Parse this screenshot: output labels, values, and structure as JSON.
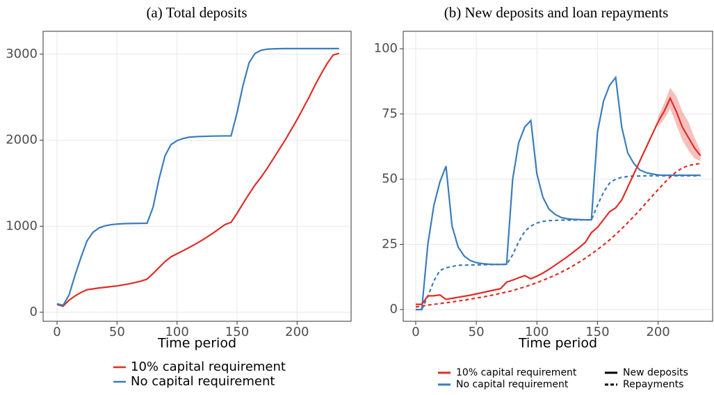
{
  "chart_data": [
    {
      "type": "line",
      "title": "(a) Total deposits",
      "x_label": "Time period",
      "x": [
        0,
        5,
        10,
        15,
        20,
        25,
        30,
        35,
        40,
        45,
        50,
        55,
        60,
        65,
        70,
        75,
        80,
        85,
        90,
        95,
        100,
        105,
        110,
        115,
        120,
        125,
        130,
        135,
        140,
        145,
        150,
        155,
        160,
        165,
        170,
        175,
        180,
        185,
        190,
        195,
        200,
        205,
        210,
        215,
        220,
        225,
        230,
        235
      ],
      "series": [
        {
          "name": "10% capital requirement",
          "color": "#de2d26",
          "dash": false,
          "values": [
            90,
            70,
            140,
            190,
            230,
            262,
            272,
            282,
            290,
            298,
            306,
            318,
            330,
            345,
            362,
            385,
            450,
            520,
            590,
            645,
            680,
            715,
            752,
            790,
            830,
            875,
            920,
            970,
            1020,
            1045,
            1150,
            1265,
            1375,
            1480,
            1570,
            1670,
            1780,
            1890,
            2000,
            2120,
            2240,
            2370,
            2500,
            2640,
            2770,
            2890,
            2990,
            3010
          ]
        },
        {
          "name": "No capital requirement",
          "color": "#3a7dba",
          "dash": false,
          "values": [
            100,
            80,
            200,
            430,
            640,
            830,
            930,
            980,
            1005,
            1018,
            1025,
            1030,
            1032,
            1033,
            1034,
            1035,
            1220,
            1550,
            1820,
            1950,
            1995,
            2020,
            2035,
            2040,
            2044,
            2046,
            2048,
            2049,
            2050,
            2050,
            2320,
            2640,
            2900,
            3010,
            3045,
            3058,
            3062,
            3064,
            3065,
            3065,
            3065,
            3065,
            3065,
            3065,
            3065,
            3065,
            3065,
            3065
          ]
        }
      ],
      "xlim": [
        -11.6,
        245
      ],
      "xticks": [
        0,
        50,
        100,
        150,
        200
      ],
      "ylim": [
        -105,
        3266
      ],
      "yticks": [
        0,
        1000,
        2000,
        3000
      ],
      "grid": true
    },
    {
      "type": "line",
      "title": "(b) New deposits and loan repayments",
      "x_label": "Time period",
      "x": [
        0,
        5,
        10,
        15,
        20,
        25,
        30,
        35,
        40,
        45,
        50,
        55,
        60,
        65,
        70,
        75,
        80,
        85,
        90,
        95,
        100,
        105,
        110,
        115,
        120,
        125,
        130,
        135,
        140,
        145,
        150,
        155,
        160,
        165,
        170,
        175,
        180,
        185,
        190,
        195,
        200,
        205,
        210,
        215,
        220,
        225,
        230,
        235
      ],
      "legend_colors": [
        {
          "name": "10% capital requirement",
          "color": "#de2d26"
        },
        {
          "name": "No capital requirement",
          "color": "#3a7dba"
        }
      ],
      "legend_linetypes": [
        {
          "name": "New deposits",
          "dash": false
        },
        {
          "name": "Repayments",
          "dash": true
        }
      ],
      "series": [
        {
          "color": "#3a7dba",
          "dash": true,
          "values": [
            0,
            0,
            5,
            11,
            15,
            16,
            16.5,
            17,
            17,
            17.1,
            17.1,
            17.2,
            17.2,
            17.3,
            17.3,
            17.3,
            21,
            26,
            30,
            32,
            33.2,
            33.8,
            34.1,
            34.2,
            34.3,
            34.3,
            34.3,
            34.4,
            34.4,
            34.4,
            40,
            45,
            48.5,
            50,
            50.7,
            51,
            51.2,
            51.2,
            51.3,
            51.3,
            51.3,
            51.3,
            51.3,
            51.3,
            51.3,
            51.3,
            51.3,
            51.3
          ]
        },
        {
          "color": "#de2d26",
          "dash": true,
          "values": [
            1,
            1.3,
            1.7,
            2,
            2.3,
            2.6,
            2.9,
            3.3,
            3.6,
            4,
            4.4,
            4.8,
            5.2,
            5.7,
            6.2,
            6.7,
            7.3,
            8,
            8.7,
            9.5,
            10.3,
            11.2,
            12.2,
            13.2,
            14.3,
            15.5,
            16.8,
            18.2,
            19.7,
            21.3,
            23,
            24.8,
            26.7,
            28.8,
            31,
            33.3,
            35.7,
            38.2,
            40.8,
            43.4,
            46,
            48.5,
            50.8,
            52.8,
            54.3,
            55.2,
            55.7,
            56
          ]
        },
        {
          "color": "#3a7dba",
          "dash": false,
          "values": [
            0,
            0,
            25,
            40,
            49,
            55,
            32,
            24,
            20.5,
            18.8,
            18,
            17.6,
            17.4,
            17.3,
            17.3,
            17.4,
            50,
            64,
            70,
            72.5,
            52,
            43,
            38.5,
            36.5,
            35.3,
            34.8,
            34.6,
            34.5,
            34.4,
            34.4,
            68,
            80,
            86,
            89,
            70,
            60,
            56,
            53.5,
            52.5,
            52,
            51.6,
            51.5,
            51.5,
            51.5,
            51.5,
            51.5,
            51.5,
            51.5
          ]
        },
        {
          "color": "#de2d26",
          "dash": false,
          "values": [
            2,
            2,
            5.2,
            5.3,
            5.6,
            3.9,
            4.3,
            4.7,
            5.1,
            5.5,
            6,
            6.5,
            7,
            7.5,
            8,
            10.5,
            11.3,
            12.2,
            13,
            11.8,
            12.8,
            14,
            15.4,
            17,
            18.6,
            20.2,
            22,
            23.8,
            25.8,
            29.5,
            31.5,
            34.5,
            37.5,
            39,
            42,
            47,
            52,
            57,
            62,
            67,
            72,
            76,
            81,
            76,
            70,
            66,
            62,
            59
          ],
          "band_lower": [
            null,
            null,
            null,
            null,
            null,
            null,
            null,
            null,
            null,
            null,
            null,
            null,
            null,
            null,
            null,
            null,
            null,
            null,
            null,
            null,
            null,
            null,
            null,
            null,
            null,
            null,
            null,
            null,
            null,
            null,
            null,
            null,
            null,
            null,
            null,
            null,
            null,
            null,
            null,
            null,
            70,
            73,
            77,
            71,
            65,
            61,
            58,
            57
          ],
          "band_upper": [
            null,
            null,
            null,
            null,
            null,
            null,
            null,
            null,
            null,
            null,
            null,
            null,
            null,
            null,
            null,
            null,
            null,
            null,
            null,
            null,
            null,
            null,
            null,
            null,
            null,
            null,
            null,
            null,
            null,
            null,
            null,
            null,
            null,
            null,
            null,
            null,
            null,
            null,
            null,
            null,
            74,
            79,
            85,
            82,
            76,
            72,
            66,
            61
          ]
        }
      ],
      "xlim": [
        -10.3,
        245
      ],
      "xticks": [
        0,
        50,
        100,
        150,
        200
      ],
      "ylim": [
        -4.5,
        106.7
      ],
      "yticks": [
        0,
        25,
        50,
        75,
        100
      ],
      "grid": true
    }
  ]
}
